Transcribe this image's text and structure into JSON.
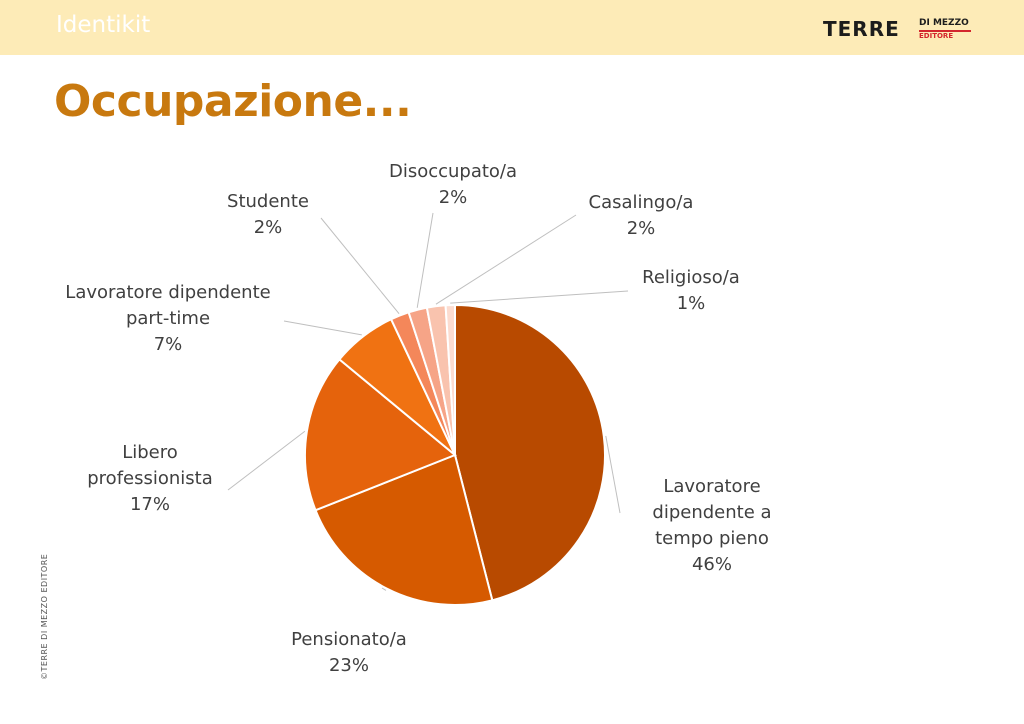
{
  "header": {
    "section_label": "Identikit",
    "logo": {
      "main": "TERRE",
      "sub_top": "DI MEZZO",
      "sub_bottom": "EDITORE"
    },
    "background_color": "#fdebb7"
  },
  "page": {
    "title": "Occupazione...",
    "title_color": "#c8790f",
    "copyright": "©TERRE DI MEZZO EDITORE"
  },
  "chart_data": {
    "type": "pie",
    "title": "",
    "start_angle": "12 o'clock",
    "direction": "clockwise",
    "legend": "none",
    "slices": [
      {
        "category": [
          "Lavoratore",
          "dipendente a",
          "tempo pieno"
        ],
        "value": 46,
        "pct_label": "46%",
        "color": "#b84a00"
      },
      {
        "category": [
          "Pensionato/a"
        ],
        "value": 23,
        "pct_label": "23%",
        "color": "#d65a00"
      },
      {
        "category": [
          "Libero",
          "professionista"
        ],
        "value": 17,
        "pct_label": "17%",
        "color": "#e5630c"
      },
      {
        "category": [
          "Lavoratore dipendente",
          "part-time"
        ],
        "value": 7,
        "pct_label": "7%",
        "color": "#f07212"
      },
      {
        "category": [
          "Studente"
        ],
        "value": 2,
        "pct_label": "2%",
        "color": "#f4875a"
      },
      {
        "category": [
          "Disoccupato/a"
        ],
        "value": 2,
        "pct_label": "2%",
        "color": "#f6a487"
      },
      {
        "category": [
          "Casalingo/a"
        ],
        "value": 2,
        "pct_label": "2%",
        "color": "#f9c3ae"
      },
      {
        "category": [
          "Religioso/a"
        ],
        "value": 1,
        "pct_label": "1%",
        "color": "#fcdcd0"
      }
    ]
  }
}
